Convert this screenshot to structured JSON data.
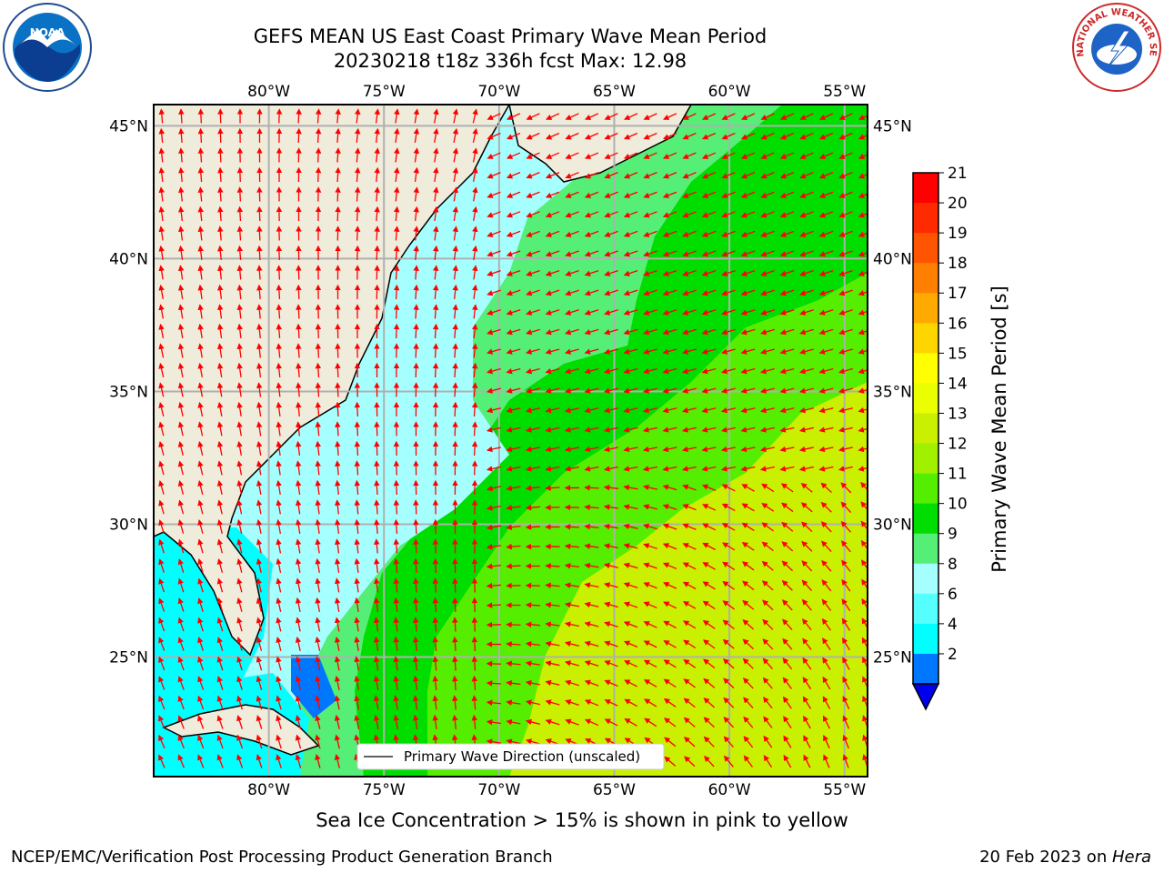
{
  "title": {
    "line1": "GEFS MEAN US East Coast Primary Wave Mean Period",
    "line2": "20230218 t18z 336h fcst   Max: 12.98"
  },
  "logos": {
    "left": {
      "icon": "noaa-logo",
      "text": "NOAA"
    },
    "right": {
      "icon": "nws-logo",
      "text": "NATIONAL WEATHER SERVICE"
    }
  },
  "map": {
    "lon_range": [
      -85,
      -54
    ],
    "lat_range": [
      20.5,
      45.8
    ],
    "lon_labels": [
      "80°W",
      "75°W",
      "70°W",
      "65°W",
      "60°W",
      "55°W"
    ],
    "lon_values": [
      -80,
      -75,
      -70,
      -65,
      -60,
      -55
    ],
    "lat_labels": [
      "45°N",
      "40°N",
      "35°N",
      "30°N",
      "25°N"
    ],
    "lat_values": [
      45,
      40,
      35,
      30,
      25
    ],
    "grid": true,
    "vector_color": "#ff0000",
    "land_color": "#efecdc"
  },
  "legend": {
    "label": "Primary Wave Direction (unscaled)",
    "placement": "bottom-center"
  },
  "colorbar": {
    "label": "Primary Wave Mean Period [s]",
    "ticks": [
      "21",
      "20",
      "19",
      "18",
      "17",
      "16",
      "15",
      "14",
      "13",
      "12",
      "11",
      "10",
      "9",
      "8",
      "6",
      "4",
      "2"
    ],
    "colors": [
      "#ff0000",
      "#ff2a00",
      "#ff5500",
      "#ff8000",
      "#ffaa00",
      "#ffd500",
      "#ffff00",
      "#eaff00",
      "#c8f000",
      "#a0f000",
      "#55ee00",
      "#00dd00",
      "#55ee77",
      "#a6ffff",
      "#55ffff",
      "#00ffff",
      "#0077ff"
    ],
    "under_color": "#0000ee"
  },
  "caption": "Sea Ice Concentration > 15% is shown in pink to yellow",
  "footer": {
    "left": "NCEP/EMC/Verification Post Processing Product Generation Branch",
    "right_prefix": "20 Feb 2023 on ",
    "right_italic": "Hera"
  }
}
